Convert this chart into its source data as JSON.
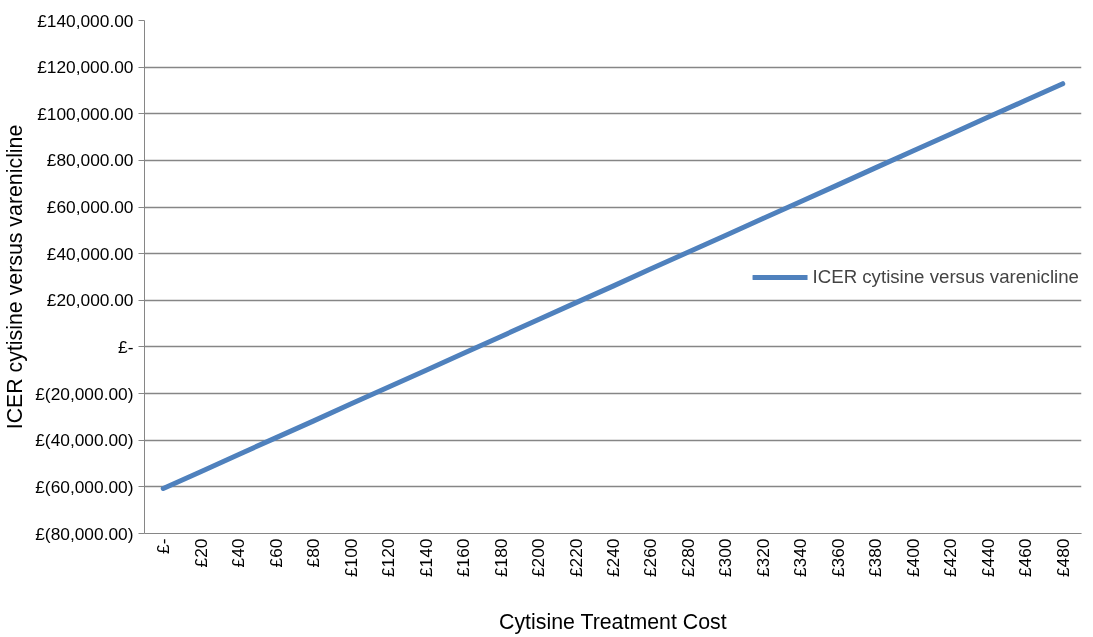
{
  "chart_data": {
    "type": "line",
    "xlabel": "Cytisine Treatment Cost",
    "ylabel": "ICER cytisine versus varenicline",
    "categories": [
      "£-",
      "£20",
      "£40",
      "£60",
      "£80",
      "£100",
      "£120",
      "£140",
      "£160",
      "£180",
      "£200",
      "£220",
      "£240",
      "£260",
      "£280",
      "£300",
      "£320",
      "£340",
      "£360",
      "£380",
      "£400",
      "£420",
      "£440",
      "£460",
      "£480"
    ],
    "series": [
      {
        "name": "ICER cytisine versus varenicline",
        "color": "#4f81bd",
        "values": [
          -60700,
          -53500,
          -46200,
          -39000,
          -31800,
          -24500,
          -17300,
          -10100,
          -2800,
          4400,
          11700,
          18900,
          26100,
          33400,
          40600,
          47800,
          55100,
          62300,
          69500,
          76800,
          84000,
          91200,
          98500,
          105700,
          112900
        ]
      }
    ],
    "ylim": [
      -80000,
      140000
    ],
    "yticks": [
      {
        "value": -80000,
        "label": "£(80,000.00)"
      },
      {
        "value": -60000,
        "label": "£(60,000.00)"
      },
      {
        "value": -40000,
        "label": "£(40,000.00)"
      },
      {
        "value": -20000,
        "label": "£(20,000.00)"
      },
      {
        "value": 0,
        "label": "£-"
      },
      {
        "value": 20000,
        "label": "£20,000.00"
      },
      {
        "value": 40000,
        "label": "£40,000.00"
      },
      {
        "value": 60000,
        "label": "£60,000.00"
      },
      {
        "value": 80000,
        "label": "£80,000.00"
      },
      {
        "value": 100000,
        "label": "£100,000.00"
      },
      {
        "value": 120000,
        "label": "£120,000.00"
      },
      {
        "value": 140000,
        "label": "£140,000.00"
      }
    ],
    "grid": "y",
    "legend": "right",
    "marker": "none",
    "line_style": "solid"
  }
}
